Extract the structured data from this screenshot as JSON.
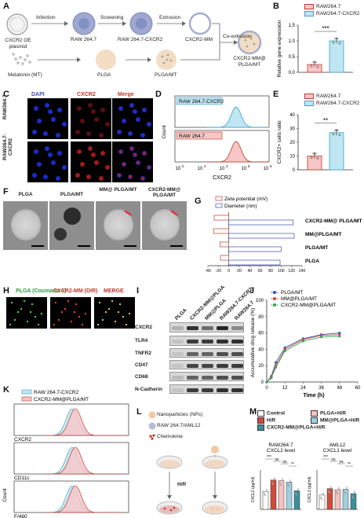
{
  "panelA": {
    "label": "A",
    "steps": [
      "Infection",
      "Screening",
      "Extrusion",
      "Co-extrusion"
    ],
    "nodes": [
      "CXCR2 OE plasmid",
      "RAW 264.7",
      "RAW 264.7-CXCR2",
      "CXCR2-MM",
      "Melatonin (MT)",
      "PLGA",
      "PLGA/MT",
      "CXCR2-MM@ PLGA/MT"
    ]
  },
  "panelB": {
    "label": "B",
    "ylabel": "Relative gene expression",
    "legend": [
      "RAW264.7",
      "RAW264.7-CXCR2"
    ],
    "sig": "***",
    "ticks": [
      "0.0",
      "0.5",
      "1.0",
      "1.5"
    ]
  },
  "panelC": {
    "label": "C",
    "cols": [
      "DAPI",
      "CXCR2",
      "Merge"
    ],
    "rows": [
      "RAW264.7",
      "RAW264.7-CXCR2"
    ]
  },
  "panelD": {
    "label": "D",
    "series": [
      "RAW 264.7-CXCR2",
      "RAW 264.7"
    ],
    "ylabel": "Count",
    "xlabel": "CXCR2",
    "xticks": [
      "10",
      "10",
      "10",
      "10",
      "10"
    ],
    "xexp": [
      "0",
      "3",
      "4",
      "5",
      "6"
    ]
  },
  "panelE": {
    "label": "E",
    "ylabel": "CXCR2+ cells ratio",
    "legend": [
      "RAW264.7",
      "RAW264.7-CXCR2"
    ],
    "sig": "**",
    "ticks": [
      "0",
      "10",
      "20",
      "30",
      "40"
    ]
  },
  "panelF": {
    "label": "F",
    "images": [
      "PLGA",
      "PLGA/MT",
      "MM@ PLGA/MT",
      "CXCR2-MM@ PLGA/MT"
    ]
  },
  "panelG": {
    "label": "G",
    "legend": [
      "Zeta potential (mV)",
      "Diameter (nm)"
    ],
    "categories": [
      "CXCR2-MM@ PLGA/MT",
      "MM@PLGA/MT",
      "PLGA/MT",
      "PLGA"
    ],
    "xticks": [
      "-40",
      "-20",
      "0",
      "20",
      "40",
      "60",
      "80",
      "100",
      "120",
      "140"
    ]
  },
  "panelH": {
    "label": "H",
    "cols": [
      "PLGA (Coumarin 6)",
      "CXCR2-MM (DIR)",
      "MERGE"
    ]
  },
  "panelI": {
    "label": "I",
    "lanes": [
      "PLGA",
      "CXCR2-MM@PLGA",
      "MM@PLGA",
      "RAW264.7-CXCR2",
      "RAW264.7"
    ],
    "proteins": [
      "CXCR2",
      "TLR4",
      "TNFR2",
      "CD47",
      "CD68",
      "N-Cadherin"
    ]
  },
  "panelJ": {
    "label": "J",
    "legend": [
      "PLGA/MT",
      "MM@PLGA/MT",
      "CXCR2-MM@PLGA/MT"
    ],
    "ylabel": "Accumulative drug release (%)",
    "xlabel": "Time (h)",
    "xticks": [
      "0",
      "12",
      "24",
      "36",
      "48",
      "60"
    ],
    "yticks": [
      "0",
      "20",
      "40",
      "60",
      "80",
      "100"
    ]
  },
  "panelK": {
    "label": "K",
    "legend": [
      "RAW 264.7-CXCR2",
      "CXCR2-MM@PLGA/MT"
    ],
    "markers": [
      "CXCR2",
      "CD11c",
      "F/480"
    ],
    "ylabel": "Count"
  },
  "panelL": {
    "label": "L",
    "legend": [
      "Nanoparticles (NPs)",
      "RAW 264.7/AML12",
      "Chemokine"
    ],
    "step": "H/R"
  },
  "panelM": {
    "label": "M",
    "legend": [
      "Control",
      "PLGA+H/R",
      "H/R",
      "MM@PLGA+H/R",
      "CXCR2-MM@PLGA+H/R"
    ],
    "sub1": {
      "title": "RAW264.7",
      "title2": "CXCL2 level",
      "ylabel": "CXCL2 (pg/ml)",
      "sigs": [
        "***",
        "ns",
        "ns",
        "**"
      ]
    },
    "sub2": {
      "title": "AML12",
      "title2": "CXCL1 level",
      "ylabel": "CXCL1 (pg/ml)",
      "sigs": [
        "***",
        "ns",
        "ns",
        "**"
      ]
    }
  },
  "chart_data": [
    {
      "type": "bar",
      "panel": "B",
      "categories": [
        "RAW264.7",
        "RAW264.7-CXCR2"
      ],
      "values": [
        0.25,
        1.0
      ],
      "ylim": [
        0,
        1.5
      ],
      "ylabel": "Relative gene expression"
    },
    {
      "type": "bar",
      "panel": "E",
      "categories": [
        "RAW264.7",
        "RAW264.7-CXCR2"
      ],
      "values": [
        10,
        27
      ],
      "ylim": [
        0,
        40
      ],
      "ylabel": "CXCR2+ cells ratio"
    },
    {
      "type": "bar",
      "panel": "G",
      "categories": [
        "CXCR2-MM@PLGA/MT",
        "MM@PLGA/MT",
        "PLGA/MT",
        "PLGA"
      ],
      "series": [
        {
          "name": "Zeta potential (mV)",
          "values": [
            -28,
            -29,
            -17,
            -16
          ]
        },
        {
          "name": "Diameter (nm)",
          "values": [
            123,
            125,
            100,
            98
          ]
        }
      ],
      "xlim": [
        -40,
        140
      ]
    },
    {
      "type": "line",
      "panel": "J",
      "x": [
        0,
        3,
        6,
        12,
        24,
        36,
        48
      ],
      "series": [
        {
          "name": "PLGA/MT",
          "values": [
            0,
            7,
            24,
            42,
            53,
            58,
            60
          ]
        },
        {
          "name": "MM@PLGA/MT",
          "values": [
            0,
            6,
            20,
            40,
            52,
            57,
            58
          ]
        },
        {
          "name": "CXCR2-MM@PLGA/MT",
          "values": [
            0,
            5,
            18,
            38,
            50,
            55,
            56
          ]
        }
      ],
      "xlim": [
        0,
        60
      ],
      "ylim": [
        0,
        100
      ],
      "xlabel": "Time (h)",
      "ylabel": "Accumulative drug release (%)"
    },
    {
      "type": "bar",
      "panel": "M-RAW264.7",
      "categories": [
        "Control",
        "H/R",
        "PLGA+H/R",
        "MM@PLGA+H/R",
        "CXCR2-MM@PLGA+H/R"
      ],
      "values": [
        50,
        82,
        80,
        76,
        52
      ],
      "ylabel": "CXCL2 (pg/ml)"
    },
    {
      "type": "bar",
      "panel": "M-AML12",
      "categories": [
        "Control",
        "H/R",
        "PLGA+H/R",
        "MM@PLGA+H/R",
        "CXCR2-MM@PLGA+H/R"
      ],
      "values": [
        40,
        58,
        55,
        56,
        44
      ],
      "ylabel": "CXCL1 (pg/ml)"
    }
  ]
}
